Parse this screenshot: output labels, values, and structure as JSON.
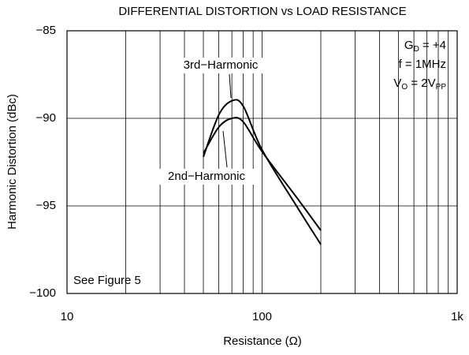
{
  "chart_data": {
    "type": "line",
    "title": "DIFFERENTIAL DISTORTION vs LOAD RESISTANCE",
    "xlabel": "Resistance (Ω)",
    "ylabel": "Harmonic Distortion (dBc)",
    "x": [
      50,
      60,
      70,
      80,
      100,
      150,
      200
    ],
    "series": [
      {
        "name": "3rd−Harmonic",
        "color": "#000000",
        "values": [
          -92.2,
          -89.8,
          -89.0,
          -89.3,
          -91.8,
          -95.0,
          -97.2
        ]
      },
      {
        "name": "2nd−Harmonic",
        "color": "#000000",
        "values": [
          -92.0,
          -90.5,
          -90.0,
          -90.2,
          -91.9,
          -94.5,
          -96.4
        ]
      }
    ],
    "xscale": "log",
    "xlim": [
      10,
      1000
    ],
    "xticks": [
      10,
      100,
      {
        "value": 1000,
        "label": "1k"
      }
    ],
    "xminor": [
      20,
      30,
      40,
      50,
      60,
      70,
      80,
      90,
      200,
      300,
      400,
      500,
      600,
      700,
      800,
      900
    ],
    "ylim": [
      -100,
      -85
    ],
    "yticks": [
      {
        "value": -100,
        "label": "−100"
      },
      {
        "value": -95,
        "label": "−95"
      },
      {
        "value": -90,
        "label": "−90"
      },
      {
        "value": -85,
        "label": "−85"
      }
    ],
    "grid": true,
    "conditions": [
      [
        {
          "text": "G"
        },
        {
          "text": "D",
          "sub": true
        },
        {
          "text": " = +4"
        }
      ],
      [
        {
          "text": "f = 1MHz"
        }
      ],
      [
        {
          "text": "V"
        },
        {
          "text": "O",
          "sub": true
        },
        {
          "text": " = 2V"
        },
        {
          "text": "PP",
          "sub": true
        }
      ]
    ],
    "note": "See Figure 5"
  }
}
